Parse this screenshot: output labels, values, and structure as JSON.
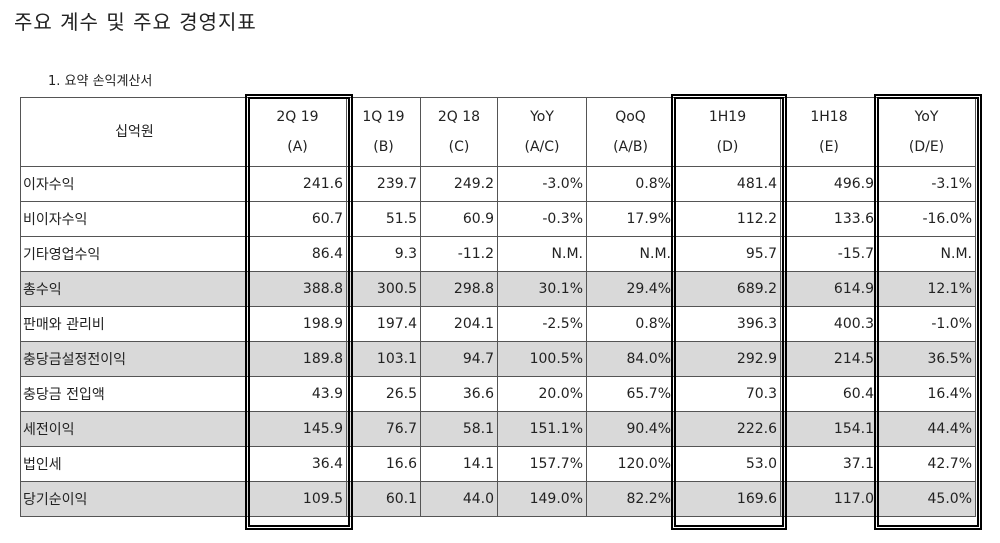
{
  "header": {
    "title": "주요 계수 및 주요 경영지표",
    "subtitle": "1.  요약 손익계산서"
  },
  "table": {
    "columns": [
      [
        "십억원"
      ],
      [
        "2Q 19",
        "(A)"
      ],
      [
        "1Q 19",
        "(B)"
      ],
      [
        "2Q 18",
        "(C)"
      ],
      [
        "YoY",
        "(A/C)"
      ],
      [
        "QoQ",
        "(A/B)"
      ],
      [
        "1H19",
        "(D)"
      ],
      [
        "1H18",
        "(E)"
      ],
      [
        "YoY",
        "(D/E)"
      ]
    ],
    "rows": [
      {
        "label": "이자수익",
        "cells": [
          "241.6",
          "239.7",
          "249.2",
          "-3.0%",
          "0.8%",
          "481.4",
          "496.9",
          "-3.1%"
        ]
      },
      {
        "label": "비이자수익",
        "cells": [
          "60.7",
          "51.5",
          "60.9",
          "-0.3%",
          "17.9%",
          "112.2",
          "133.6",
          "-16.0%"
        ]
      },
      {
        "label": "기타영업수익",
        "cells": [
          "86.4",
          "9.3",
          "-11.2",
          "N.M.",
          "N.M.",
          "95.7",
          "-15.7",
          "N.M."
        ]
      },
      {
        "label": "총수익",
        "shaded": true,
        "cells": [
          "388.8",
          "300.5",
          "298.8",
          "30.1%",
          "29.4%",
          "689.2",
          "614.9",
          "12.1%"
        ]
      },
      {
        "label": "판매와 관리비",
        "cells": [
          "198.9",
          "197.4",
          "204.1",
          "-2.5%",
          "0.8%",
          "396.3",
          "400.3",
          "-1.0%"
        ]
      },
      {
        "label": "충당금설정전이익",
        "shaded": true,
        "cells": [
          "189.8",
          "103.1",
          "94.7",
          "100.5%",
          "84.0%",
          "292.9",
          "214.5",
          "36.5%"
        ]
      },
      {
        "label": "충당금 전입액",
        "cells": [
          "43.9",
          "26.5",
          "36.6",
          "20.0%",
          "65.7%",
          "70.3",
          "60.4",
          "16.4%"
        ]
      },
      {
        "label": "세전이익",
        "shaded": true,
        "cells": [
          "145.9",
          "76.7",
          "58.1",
          "151.1%",
          "90.4%",
          "222.6",
          "154.1",
          "44.4%"
        ]
      },
      {
        "label": "법인세",
        "cells": [
          "36.4",
          "16.6",
          "14.1",
          "157.7%",
          "120.0%",
          "53.0",
          "37.1",
          "42.7%"
        ]
      },
      {
        "label": "당기순이익",
        "shaded": true,
        "cells": [
          "109.5",
          "60.1",
          "44.0",
          "149.0%",
          "82.2%",
          "169.6",
          "117.0",
          "45.0%"
        ]
      }
    ]
  }
}
